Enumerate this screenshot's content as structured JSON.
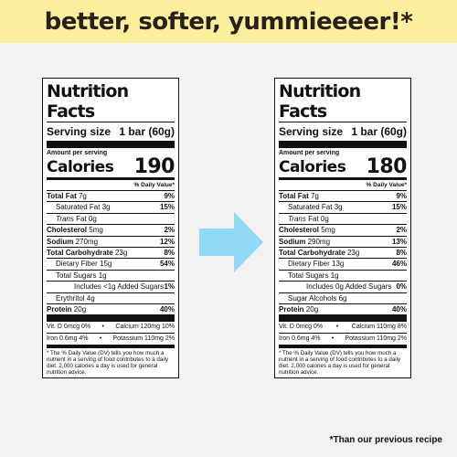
{
  "banner": "better, softer, yummieeeer!*",
  "footnote": "*Than our previous recipe",
  "colors": {
    "banner": "#fbef9e",
    "arrow": "#8fd8f6"
  },
  "icons": {
    "arrow": "right-arrow-icon"
  },
  "labels": [
    {
      "title": "Nutrition Facts",
      "serving_label": "Serving size",
      "serving_value": "1 bar (60g)",
      "amount_per": "Amount per serving",
      "calories_label": "Calories",
      "calories": "190",
      "dv_header": "% Daily Value*",
      "total_fat": "Total Fat",
      "total_fat_amt": "7g",
      "total_fat_dv": "9%",
      "sat_fat": "Saturated Fat 3g",
      "sat_fat_dv": "15%",
      "trans": "Trans",
      "trans_rest": " Fat 0g",
      "chol": "Cholesterol",
      "chol_amt": "5mg",
      "chol_dv": "2%",
      "sodium": "Sodium",
      "sodium_amt": "270mg",
      "sodium_dv": "12%",
      "carb": "Total Carbohydrate",
      "carb_amt": "23g",
      "carb_dv": "8%",
      "fiber": "Dietary Fiber 15g",
      "fiber_dv": "54%",
      "sugars": "Total Sugars 1g",
      "added": "Includes <1g Added Sugars",
      "added_dv": "1%",
      "extra": "Erythritol 4g",
      "protein": "Protein",
      "protein_amt": "20g",
      "protein_dv": "40%",
      "vit_a": "Vit. D 0mcg 0%",
      "vit_b": "Calcium 120mg 10%",
      "vit_c": "Iron 0.6mg 4%",
      "vit_d": "Potassium 110mg 2%",
      "foot": "* The % Daily Value (DV) tells you how much a nutrient in a serving of food contributes to a daily diet. 2,000 calories a day is used for general nutrition advice."
    },
    {
      "title": "Nutrition Facts",
      "serving_label": "Serving size",
      "serving_value": "1 bar (60g)",
      "amount_per": "Amount per serving",
      "calories_label": "Calories",
      "calories": "180",
      "dv_header": "% Daily Value*",
      "total_fat": "Total Fat",
      "total_fat_amt": "7g",
      "total_fat_dv": "9%",
      "sat_fat": "Saturated Fat 3g",
      "sat_fat_dv": "15%",
      "trans": "Trans",
      "trans_rest": " Fat 0g",
      "chol": "Cholesterol",
      "chol_amt": "5mg",
      "chol_dv": "2%",
      "sodium": "Sodium",
      "sodium_amt": "290mg",
      "sodium_dv": "13%",
      "carb": "Total Carbohydrate",
      "carb_amt": "23g",
      "carb_dv": "8%",
      "fiber": "Dietary Fiber 13g",
      "fiber_dv": "46%",
      "sugars": "Total Sugars 1g",
      "added": "Includes 0g Added Sugars",
      "added_dv": "0%",
      "extra": "Sugar Alcohols 6g",
      "protein": "Protein",
      "protein_amt": "20g",
      "protein_dv": "40%",
      "vit_a": "Vit. D 0mcg 0%",
      "vit_b": "Calcium 110mg 8%",
      "vit_c": "Iron 0.6mg 4%",
      "vit_d": "Potassium 110mg 2%",
      "foot": "* The % Daily Value (DV) tells you how much a nutrient in a serving of food contributes to a daily diet. 2,000 calories a day is used for general nutrition advice."
    }
  ]
}
